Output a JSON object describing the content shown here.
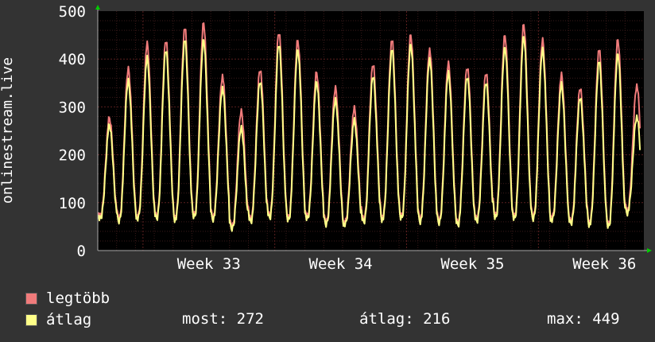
{
  "colors": {
    "background": "#333333",
    "plot_bg": "#000000",
    "grid": "#5a1f1f",
    "max_line": "#f07b7b",
    "avg_line": "#ffff88",
    "text": "#ffffff",
    "arrow": "#00cc00"
  },
  "chart_data": {
    "type": "line",
    "ylabel": "onlinestream.live",
    "ylim": [
      0,
      500
    ],
    "y_ticks": [
      "0",
      "100",
      "200",
      "300",
      "400",
      "500"
    ],
    "x_ticks": [
      "Week 33",
      "Week 34",
      "Week 35",
      "Week 36"
    ],
    "grid": true,
    "legend_position": "bottom-left",
    "x_days": 29,
    "series": [
      {
        "name": "legtöbb",
        "color": "#f07b7b",
        "daily_peaks": [
          275,
          380,
          430,
          440,
          465,
          475,
          365,
          290,
          380,
          455,
          440,
          370,
          340,
          295,
          390,
          440,
          450,
          420,
          390,
          385,
          370,
          450,
          470,
          440,
          365,
          340,
          420,
          440,
          345
        ],
        "daily_troughs": [
          70,
          68,
          70,
          72,
          70,
          75,
          72,
          50,
          68,
          72,
          70,
          70,
          60,
          58,
          66,
          70,
          72,
          68,
          62,
          60,
          65,
          75,
          70,
          72,
          68,
          62,
          60,
          55,
          85
        ]
      },
      {
        "name": "átlag",
        "color": "#ffff88",
        "daily_peaks": [
          260,
          355,
          400,
          420,
          440,
          440,
          340,
          255,
          355,
          430,
          420,
          350,
          315,
          270,
          365,
          420,
          430,
          400,
          370,
          365,
          350,
          425,
          445,
          420,
          345,
          320,
          395,
          410,
          280
        ],
        "daily_troughs": [
          65,
          62,
          65,
          67,
          65,
          70,
          67,
          45,
          62,
          67,
          65,
          65,
          55,
          53,
          60,
          65,
          67,
          62,
          57,
          55,
          60,
          70,
          65,
          67,
          62,
          57,
          55,
          50,
          80
        ]
      }
    ]
  },
  "legend": {
    "max_label": "legtöbb",
    "avg_label": "átlag",
    "most_text": "most: 272",
    "avg_text": "átlag: 216",
    "max_text": "max: 449"
  }
}
